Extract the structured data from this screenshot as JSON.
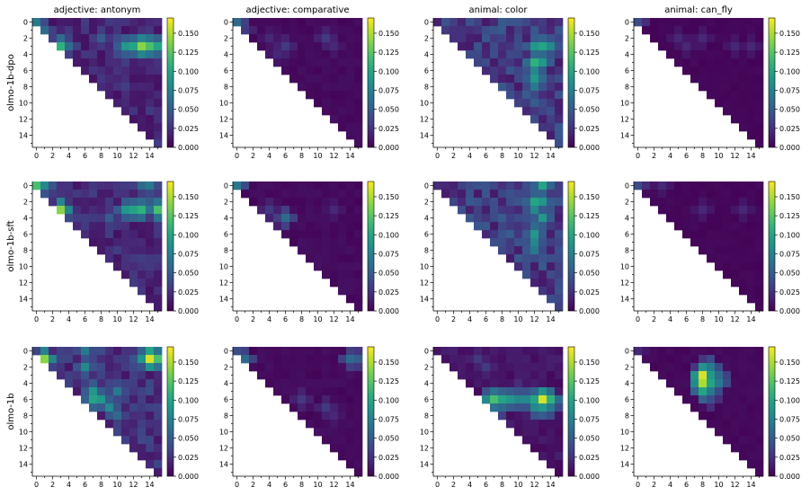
{
  "chart_data": {
    "type": "heatmap",
    "grid_size": 16,
    "mask": "upper-triangular (cells with column < row are blank)",
    "colormap": "viridis",
    "color_range": [
      0.0,
      0.17
    ],
    "axis_ticks": [
      "0",
      "2",
      "4",
      "6",
      "8",
      "10",
      "12",
      "14"
    ],
    "colorbar_ticks": [
      "0.000",
      "0.025",
      "0.050",
      "0.075",
      "0.100",
      "0.125",
      "0.150"
    ],
    "column_titles": [
      "adjective: antonym",
      "adjective: comparative",
      "animal: color",
      "animal: can_fly"
    ],
    "row_labels": [
      "olmo-1b-dpo",
      "olmo-1b-sft",
      "olmo-1b"
    ],
    "panels": [
      {
        "row": 0,
        "col": 0,
        "base": 0.02,
        "hot": [
          [
            0,
            0,
            0.07
          ],
          [
            1,
            1,
            0.06
          ],
          [
            3,
            3,
            0.11
          ],
          [
            3,
            2,
            0.06
          ],
          [
            3,
            4,
            0.06
          ],
          [
            3,
            11,
            0.09
          ],
          [
            3,
            12,
            0.1
          ],
          [
            3,
            13,
            0.14
          ],
          [
            3,
            14,
            0.12
          ],
          [
            3,
            15,
            0.1
          ],
          [
            2,
            8,
            0.05
          ],
          [
            2,
            10,
            0.04
          ],
          [
            2,
            14,
            0.05
          ],
          [
            4,
            10,
            0.04
          ]
        ]
      },
      {
        "row": 0,
        "col": 1,
        "base": 0.005,
        "hot": [
          [
            0,
            0,
            0.06
          ],
          [
            1,
            1,
            0.03
          ],
          [
            2,
            4,
            0.02
          ],
          [
            3,
            6,
            0.03
          ],
          [
            4,
            5,
            0.02
          ],
          [
            2,
            11,
            0.03
          ],
          [
            3,
            12,
            0.02
          ]
        ]
      },
      {
        "row": 0,
        "col": 2,
        "base": 0.03,
        "hot": [
          [
            3,
            12,
            0.09
          ],
          [
            3,
            13,
            0.1
          ],
          [
            3,
            14,
            0.08
          ],
          [
            5,
            12,
            0.11
          ],
          [
            5,
            13,
            0.09
          ],
          [
            6,
            12,
            0.08
          ],
          [
            7,
            12,
            0.09
          ],
          [
            8,
            12,
            0.07
          ],
          [
            7,
            13,
            0.06
          ],
          [
            2,
            13,
            0.05
          ],
          [
            4,
            13,
            0.06
          ],
          [
            9,
            11,
            0.05
          ],
          [
            10,
            12,
            0.05
          ]
        ]
      },
      {
        "row": 0,
        "col": 3,
        "base": 0.003,
        "hot": [
          [
            0,
            0,
            0.04
          ],
          [
            2,
            5,
            0.02
          ],
          [
            3,
            6,
            0.02
          ],
          [
            2,
            8,
            0.02
          ],
          [
            3,
            12,
            0.02
          ],
          [
            3,
            14,
            0.02
          ]
        ]
      },
      {
        "row": 1,
        "col": 0,
        "base": 0.02,
        "hot": [
          [
            0,
            0,
            0.12
          ],
          [
            0,
            1,
            0.08
          ],
          [
            3,
            3,
            0.14
          ],
          [
            4,
            3,
            0.07
          ],
          [
            3,
            11,
            0.09
          ],
          [
            3,
            12,
            0.1
          ],
          [
            3,
            13,
            0.11
          ],
          [
            3,
            15,
            0.12
          ],
          [
            0,
            13,
            0.06
          ],
          [
            0,
            14,
            0.07
          ],
          [
            2,
            14,
            0.05
          ],
          [
            4,
            9,
            0.05
          ]
        ]
      },
      {
        "row": 1,
        "col": 1,
        "base": 0.005,
        "hot": [
          [
            0,
            0,
            0.07
          ],
          [
            3,
            4,
            0.03
          ],
          [
            4,
            6,
            0.06
          ],
          [
            4,
            5,
            0.03
          ],
          [
            3,
            12,
            0.02
          ]
        ]
      },
      {
        "row": 1,
        "col": 2,
        "base": 0.03,
        "hot": [
          [
            0,
            13,
            0.1
          ],
          [
            2,
            12,
            0.1
          ],
          [
            2,
            13,
            0.09
          ],
          [
            3,
            12,
            0.08
          ],
          [
            4,
            13,
            0.09
          ],
          [
            6,
            12,
            0.09
          ],
          [
            7,
            12,
            0.08
          ],
          [
            8,
            12,
            0.07
          ],
          [
            5,
            12,
            0.06
          ],
          [
            4,
            8,
            0.05
          ],
          [
            6,
            9,
            0.05
          ]
        ]
      },
      {
        "row": 1,
        "col": 3,
        "base": 0.003,
        "hot": [
          [
            0,
            0,
            0.04
          ],
          [
            0,
            3,
            0.02
          ],
          [
            3,
            8,
            0.02
          ],
          [
            3,
            13,
            0.02
          ]
        ]
      },
      {
        "row": 2,
        "col": 0,
        "base": 0.025,
        "hot": [
          [
            1,
            1,
            0.14
          ],
          [
            0,
            6,
            0.07
          ],
          [
            2,
            6,
            0.08
          ],
          [
            5,
            7,
            0.09
          ],
          [
            6,
            7,
            0.1
          ],
          [
            6,
            8,
            0.09
          ],
          [
            7,
            9,
            0.08
          ],
          [
            5,
            10,
            0.07
          ],
          [
            1,
            13,
            0.08
          ],
          [
            1,
            14,
            0.16
          ],
          [
            1,
            15,
            0.12
          ],
          [
            0,
            14,
            0.1
          ],
          [
            8,
            10,
            0.06
          ]
        ]
      },
      {
        "row": 2,
        "col": 1,
        "base": 0.005,
        "hot": [
          [
            0,
            0,
            0.04
          ],
          [
            1,
            1,
            0.06
          ],
          [
            1,
            14,
            0.06
          ],
          [
            1,
            15,
            0.05
          ],
          [
            6,
            8,
            0.03
          ],
          [
            7,
            11,
            0.03
          ],
          [
            8,
            12,
            0.02
          ]
        ]
      },
      {
        "row": 2,
        "col": 2,
        "base": 0.01,
        "hot": [
          [
            6,
            6,
            0.08
          ],
          [
            6,
            7,
            0.12
          ],
          [
            6,
            8,
            0.1
          ],
          [
            6,
            9,
            0.09
          ],
          [
            6,
            10,
            0.08
          ],
          [
            6,
            11,
            0.08
          ],
          [
            6,
            12,
            0.1
          ],
          [
            6,
            13,
            0.16
          ],
          [
            6,
            14,
            0.11
          ],
          [
            7,
            12,
            0.08
          ],
          [
            7,
            13,
            0.09
          ],
          [
            7,
            14,
            0.07
          ],
          [
            7,
            8,
            0.06
          ],
          [
            5,
            10,
            0.04
          ],
          [
            1,
            5,
            0.03
          ],
          [
            2,
            6,
            0.03
          ]
        ]
      },
      {
        "row": 2,
        "col": 3,
        "base": 0.004,
        "hot": [
          [
            3,
            8,
            0.16
          ],
          [
            4,
            8,
            0.15
          ],
          [
            5,
            8,
            0.1
          ],
          [
            3,
            9,
            0.09
          ],
          [
            4,
            9,
            0.1
          ],
          [
            2,
            9,
            0.07
          ],
          [
            4,
            10,
            0.07
          ],
          [
            5,
            9,
            0.07
          ],
          [
            3,
            10,
            0.06
          ],
          [
            2,
            8,
            0.05
          ],
          [
            6,
            9,
            0.04
          ],
          [
            0,
            0,
            0.02
          ]
        ]
      }
    ]
  }
}
